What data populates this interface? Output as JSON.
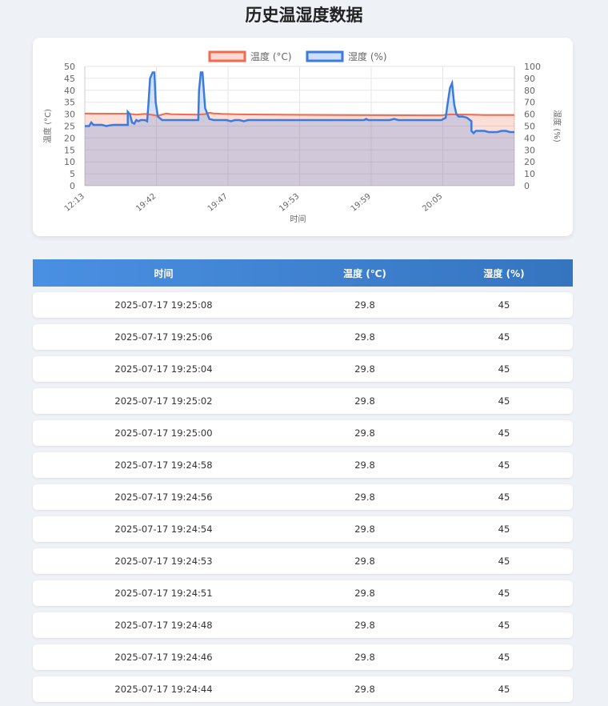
{
  "page": {
    "title": "历史温湿度数据"
  },
  "chart_data": {
    "type": "line",
    "legend": [
      "温度 (°C)",
      "湿度 (%)"
    ],
    "x_tick_labels": [
      "12:13",
      "19:42",
      "19:47",
      "19:53",
      "19:59",
      "20:05"
    ],
    "xlabel": "时间",
    "ylabel_left": "温度 (°C)",
    "ylabel_right": "湿度 (%)",
    "ylim_left": [
      0,
      50
    ],
    "ylim_right": [
      0,
      100
    ],
    "y_ticks_left": [
      "0",
      "5",
      "10",
      "15",
      "20",
      "25",
      "30",
      "35",
      "40",
      "45",
      "50"
    ],
    "y_ticks_right": [
      "0",
      "10",
      "20",
      "30",
      "40",
      "50",
      "60",
      "70",
      "80",
      "90",
      "100"
    ],
    "colors": {
      "temperature": "#f26b4e",
      "humidity": "#3b7be0"
    },
    "series": [
      {
        "name": "温度 (°C)",
        "axis": "left",
        "points": [
          [
            0,
            30.3
          ],
          [
            0.05,
            30.2
          ],
          [
            0.1,
            30.2
          ],
          [
            0.12,
            29.8
          ],
          [
            0.14,
            30.1
          ],
          [
            0.15,
            29.9
          ],
          [
            0.17,
            29.3
          ],
          [
            0.19,
            30.3
          ],
          [
            0.2,
            30.0
          ],
          [
            0.22,
            29.9
          ],
          [
            0.26,
            29.8
          ],
          [
            0.28,
            30.0
          ],
          [
            0.29,
            30.6
          ],
          [
            0.3,
            30.3
          ],
          [
            0.32,
            30.1
          ],
          [
            0.36,
            29.9
          ],
          [
            0.45,
            29.8
          ],
          [
            0.6,
            29.6
          ],
          [
            0.8,
            29.5
          ],
          [
            0.83,
            29.5
          ],
          [
            0.85,
            29.9
          ],
          [
            0.9,
            29.8
          ],
          [
            0.93,
            29.6
          ],
          [
            1,
            29.6
          ]
        ]
      },
      {
        "name": "湿度 (%)",
        "axis": "right",
        "points": [
          [
            0,
            50
          ],
          [
            0.01,
            50
          ],
          [
            0.015,
            53
          ],
          [
            0.02,
            51
          ],
          [
            0.04,
            51
          ],
          [
            0.05,
            50
          ],
          [
            0.065,
            51
          ],
          [
            0.1,
            51
          ],
          [
            0.1,
            62
          ],
          [
            0.105,
            60
          ],
          [
            0.11,
            53
          ],
          [
            0.115,
            52
          ],
          [
            0.12,
            55
          ],
          [
            0.125,
            54
          ],
          [
            0.13,
            55
          ],
          [
            0.14,
            55
          ],
          [
            0.145,
            54
          ],
          [
            0.148,
            68
          ],
          [
            0.152,
            90
          ],
          [
            0.158,
            95
          ],
          [
            0.162,
            95
          ],
          [
            0.165,
            70
          ],
          [
            0.17,
            58
          ],
          [
            0.18,
            55
          ],
          [
            0.19,
            55
          ],
          [
            0.2,
            55
          ],
          [
            0.24,
            55
          ],
          [
            0.264,
            55
          ],
          [
            0.266,
            80
          ],
          [
            0.27,
            95
          ],
          [
            0.274,
            95
          ],
          [
            0.28,
            65
          ],
          [
            0.29,
            56
          ],
          [
            0.3,
            55
          ],
          [
            0.33,
            55
          ],
          [
            0.34,
            54
          ],
          [
            0.35,
            55
          ],
          [
            0.36,
            55
          ],
          [
            0.37,
            54
          ],
          [
            0.38,
            55
          ],
          [
            0.5,
            55
          ],
          [
            0.6,
            55
          ],
          [
            0.65,
            55
          ],
          [
            0.655,
            56
          ],
          [
            0.66,
            55
          ],
          [
            0.68,
            55
          ],
          [
            0.7,
            55
          ],
          [
            0.71,
            55
          ],
          [
            0.72,
            56
          ],
          [
            0.73,
            55
          ],
          [
            0.8,
            55
          ],
          [
            0.82,
            55
          ],
          [
            0.83,
            55
          ],
          [
            0.84,
            57
          ],
          [
            0.845,
            70
          ],
          [
            0.85,
            82
          ],
          [
            0.855,
            86
          ],
          [
            0.86,
            68
          ],
          [
            0.865,
            60
          ],
          [
            0.87,
            58
          ],
          [
            0.88,
            58
          ],
          [
            0.89,
            57
          ],
          [
            0.9,
            54
          ],
          [
            0.9,
            46
          ],
          [
            0.905,
            44
          ],
          [
            0.91,
            46
          ],
          [
            0.93,
            46
          ],
          [
            0.94,
            45
          ],
          [
            0.96,
            45
          ],
          [
            0.97,
            46
          ],
          [
            0.98,
            46
          ],
          [
            0.99,
            45
          ],
          [
            1,
            45
          ]
        ]
      }
    ]
  },
  "table": {
    "headers": {
      "time": "时间",
      "temperature": "温度 (℃)",
      "humidity": "湿度 (%)"
    },
    "rows": [
      {
        "time": "2025-07-17 19:25:08",
        "temperature": "29.8",
        "humidity": "45"
      },
      {
        "time": "2025-07-17 19:25:06",
        "temperature": "29.8",
        "humidity": "45"
      },
      {
        "time": "2025-07-17 19:25:04",
        "temperature": "29.8",
        "humidity": "45"
      },
      {
        "time": "2025-07-17 19:25:02",
        "temperature": "29.8",
        "humidity": "45"
      },
      {
        "time": "2025-07-17 19:25:00",
        "temperature": "29.8",
        "humidity": "45"
      },
      {
        "time": "2025-07-17 19:24:58",
        "temperature": "29.8",
        "humidity": "45"
      },
      {
        "time": "2025-07-17 19:24:56",
        "temperature": "29.8",
        "humidity": "45"
      },
      {
        "time": "2025-07-17 19:24:54",
        "temperature": "29.8",
        "humidity": "45"
      },
      {
        "time": "2025-07-17 19:24:53",
        "temperature": "29.8",
        "humidity": "45"
      },
      {
        "time": "2025-07-17 19:24:51",
        "temperature": "29.8",
        "humidity": "45"
      },
      {
        "time": "2025-07-17 19:24:48",
        "temperature": "29.8",
        "humidity": "45"
      },
      {
        "time": "2025-07-17 19:24:46",
        "temperature": "29.8",
        "humidity": "45"
      },
      {
        "time": "2025-07-17 19:24:44",
        "temperature": "29.8",
        "humidity": "45"
      }
    ]
  }
}
